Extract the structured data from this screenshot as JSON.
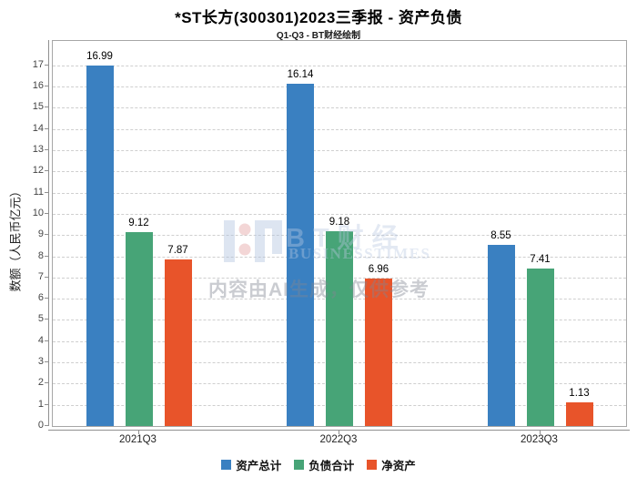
{
  "chart_data": {
    "type": "bar",
    "title": "*ST长方(300301)2023三季报 - 资产负债",
    "subtitle": "Q1-Q3 - BT财经绘制",
    "categories": [
      "2021Q3",
      "2022Q3",
      "2023Q3"
    ],
    "series": [
      {
        "name": "资产总计",
        "color": "#3a80c1",
        "values": [
          16.99,
          16.14,
          8.55
        ]
      },
      {
        "name": "负债合计",
        "color": "#47a477",
        "values": [
          9.12,
          9.18,
          7.41
        ]
      },
      {
        "name": "净资产",
        "color": "#e8542a",
        "values": [
          7.87,
          6.96,
          1.13
        ]
      }
    ],
    "xlabel": "",
    "ylabel": "数额（人民币亿元）",
    "ylim": [
      0,
      18.15
    ],
    "yticks": [
      0,
      1,
      2,
      3,
      4,
      5,
      6,
      7,
      8,
      9,
      10,
      11,
      12,
      13,
      14,
      15,
      16,
      17
    ],
    "grid": "horizontal-dashed",
    "legend_position": "bottom-center"
  },
  "watermark": {
    "brand": "BT财经",
    "brand_sub": "BUSINESSTIMES",
    "disclaimer": "内容由AI生成，仅供参考"
  }
}
